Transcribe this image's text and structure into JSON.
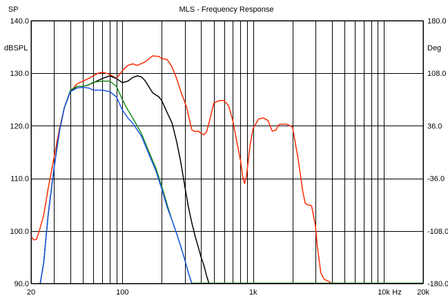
{
  "header": {
    "left_label": "SP",
    "title": "MLS - Frequency Response",
    "right_label": ""
  },
  "chart_data": {
    "type": "line",
    "title": "MLS - Frequency Response",
    "x_scale": "log",
    "xlim": [
      20,
      20000
    ],
    "ylim": [
      90,
      140
    ],
    "y2lim": [
      -180,
      180
    ],
    "grid": true,
    "left_unit": "dBSPL",
    "right_unit": "Deg",
    "x_unit": "Hz",
    "y_ticks": [
      {
        "value": 90,
        "label": "90.0"
      },
      {
        "value": 100,
        "label": "100.0"
      },
      {
        "value": 110,
        "label": "110.0"
      },
      {
        "value": 120,
        "label": "120.0"
      },
      {
        "value": 130,
        "label": "130.0"
      },
      {
        "value": 140,
        "label": "140.0"
      }
    ],
    "y2_ticks": [
      {
        "value": -180,
        "label": "-180.0"
      },
      {
        "value": -108,
        "label": "-108.0"
      },
      {
        "value": -36,
        "label": "-36.0"
      },
      {
        "value": 36,
        "label": "36.0"
      },
      {
        "value": 108,
        "label": "108.0"
      },
      {
        "value": 180,
        "label": "180.0"
      }
    ],
    "x_ticks": [
      {
        "value": 20,
        "label": "20"
      },
      {
        "value": 100,
        "label": "100"
      },
      {
        "value": 1000,
        "label": "1k"
      },
      {
        "value": 10000,
        "label": "10k"
      },
      {
        "value": 20000,
        "label": "20k"
      }
    ],
    "colors": {
      "red": "#ff2a00",
      "black": "#000000",
      "green": "#1a8a1a",
      "blue": "#1e56e6",
      "grid": "#000000",
      "frame": "#000000"
    },
    "series": [
      {
        "color": "#ff2a00",
        "x": [
          20,
          21,
          22,
          23,
          25,
          27,
          30,
          33,
          36,
          40,
          45,
          50,
          55,
          60,
          65,
          70,
          80,
          90,
          100,
          110,
          120,
          130,
          150,
          170,
          190,
          200,
          220,
          240,
          260,
          280,
          300,
          310,
          320,
          330,
          340,
          360,
          380,
          400,
          420,
          440,
          470,
          500,
          550,
          600,
          650,
          700,
          750,
          800,
          830,
          860,
          890,
          920,
          950,
          1000,
          1100,
          1200,
          1300,
          1400,
          1500,
          1550,
          1600,
          1700,
          1800,
          2000,
          2200,
          2400,
          2500,
          2600,
          2800,
          3000,
          3100,
          3200,
          3300,
          3500,
          3800,
          4000
        ],
        "values": [
          99.0,
          98.3,
          98.4,
          99.8,
          103.0,
          108.0,
          114.0,
          119.5,
          123.5,
          126.5,
          128.0,
          128.5,
          129.0,
          129.5,
          130.0,
          130.2,
          129.8,
          129.0,
          130.5,
          131.5,
          131.8,
          131.5,
          132.2,
          133.3,
          133.2,
          132.8,
          132.6,
          131.2,
          129.0,
          126.5,
          124.5,
          123.5,
          122.0,
          120.5,
          119.2,
          118.9,
          119.0,
          118.6,
          118.3,
          118.8,
          121.5,
          124.3,
          124.8,
          124.8,
          123.8,
          121.0,
          117.0,
          113.5,
          110.5,
          109.0,
          110.5,
          113.5,
          116.5,
          119.5,
          121.3,
          121.5,
          121.0,
          119.0,
          119.2,
          120.0,
          120.3,
          120.3,
          120.3,
          119.8,
          114.0,
          107.5,
          105.3,
          105.0,
          104.8,
          101.0,
          97.0,
          94.5,
          92.0,
          90.8,
          90.4,
          90.0
        ]
      },
      {
        "color": "#000000",
        "x": [
          23.5,
          25,
          27,
          30,
          33,
          36,
          40,
          45,
          50,
          55,
          60,
          70,
          80,
          90,
          100,
          110,
          120,
          130,
          140,
          150,
          170,
          190,
          200,
          220,
          240,
          260,
          280,
          300,
          320,
          340,
          360,
          380,
          400,
          420,
          440,
          460
        ],
        "values": [
          90.0,
          94.0,
          103.0,
          112.0,
          119.0,
          123.5,
          126.5,
          127.5,
          127.5,
          127.8,
          128.2,
          129.0,
          129.5,
          129.0,
          128.2,
          128.5,
          129.2,
          129.5,
          129.3,
          128.5,
          126.3,
          125.5,
          124.8,
          122.5,
          120.5,
          117.0,
          113.0,
          108.5,
          104.5,
          101.5,
          99.0,
          97.0,
          95.0,
          93.5,
          91.5,
          90.0
        ]
      },
      {
        "color": "#1a8a1a",
        "x": [
          23.5,
          25,
          27,
          30,
          33,
          36,
          40,
          45,
          50,
          55,
          60,
          70,
          80,
          90,
          100,
          110,
          120,
          140,
          160,
          180,
          200,
          220,
          240,
          260,
          280,
          300,
          320,
          340
        ],
        "values": [
          90.0,
          94.0,
          103.0,
          112.0,
          119.0,
          123.5,
          126.8,
          127.5,
          127.5,
          127.8,
          128.3,
          128.5,
          128.5,
          127.5,
          125.0,
          123.0,
          121.5,
          118.5,
          115.0,
          112.0,
          108.5,
          105.0,
          102.0,
          99.5,
          97.0,
          94.5,
          92.0,
          90.0
        ]
      },
      {
        "color": "#1e56e6",
        "x": [
          23.5,
          25,
          27,
          30,
          33,
          36,
          40,
          45,
          50,
          55,
          60,
          70,
          80,
          90,
          100,
          110,
          120,
          140,
          160,
          180,
          200,
          220,
          240,
          260,
          280,
          300,
          320,
          340
        ],
        "values": [
          90.0,
          94.0,
          103.0,
          112.0,
          119.0,
          123.5,
          126.5,
          127.2,
          127.3,
          127.2,
          126.8,
          126.8,
          126.5,
          125.5,
          123.0,
          121.5,
          120.5,
          118.0,
          114.5,
          111.5,
          108.0,
          104.5,
          102.0,
          99.5,
          97.0,
          94.5,
          92.0,
          90.0
        ]
      }
    ]
  }
}
